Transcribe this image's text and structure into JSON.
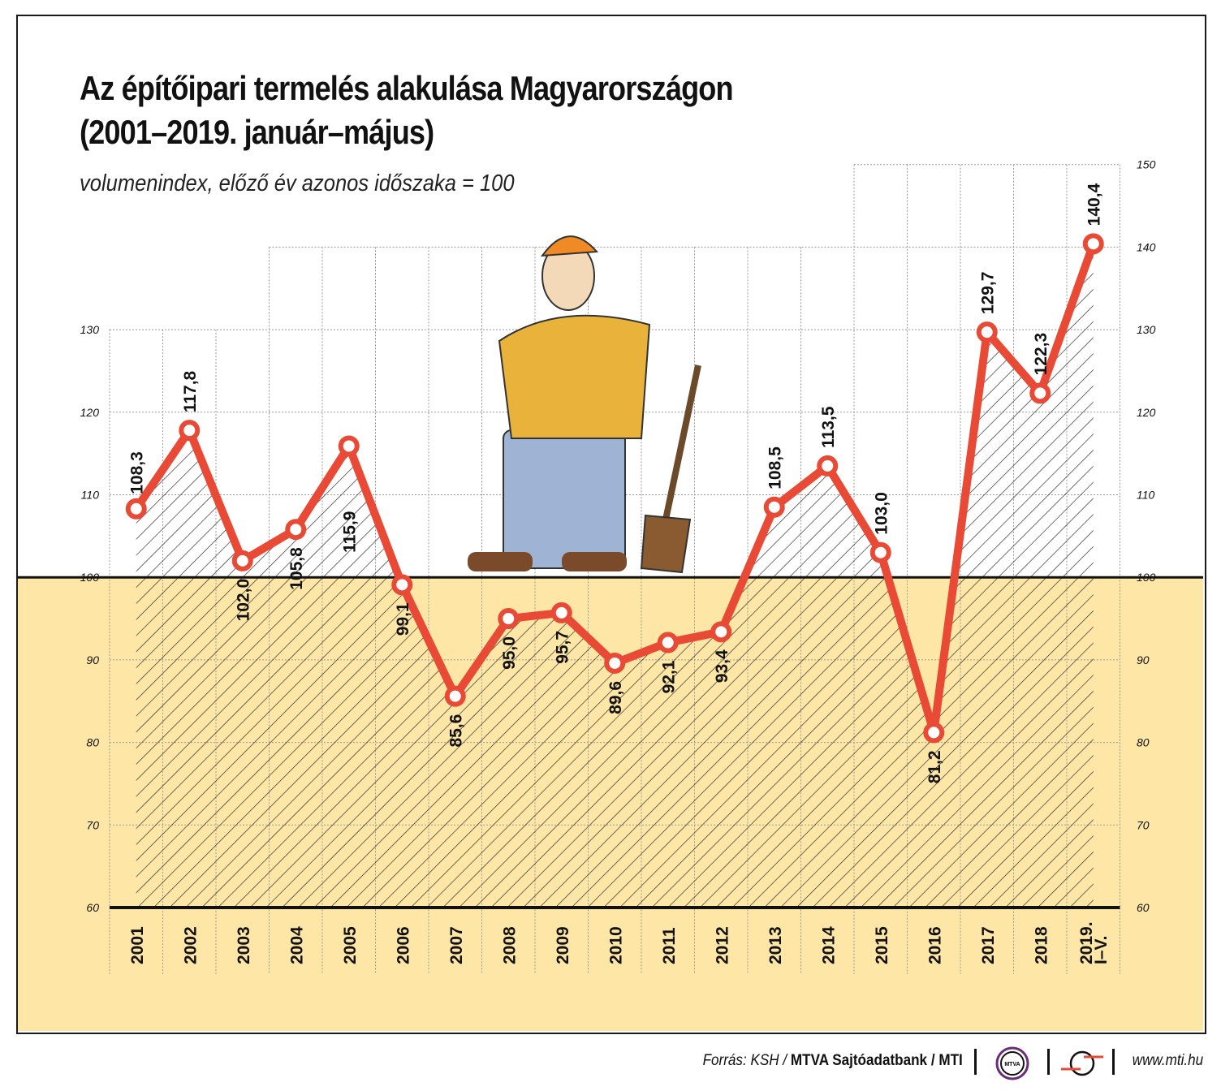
{
  "header": {
    "title_line1": "Az építőipari termelés alakulása Magyarországon",
    "title_line2": "(2001–2019. január–május)",
    "subtitle": "volumenindex, előző év azonos időszaka = 100"
  },
  "footer": {
    "source_prefix": "Forrás: KSH / ",
    "source_bold": "MTVA Sajtóadatbank",
    "source_suffix": " / MTI",
    "logo1_text": "MTVA",
    "url": "www.mti.hu"
  },
  "colors": {
    "line": "#e84a35",
    "below_100_fill": "#fde6a6",
    "grid": "#999999"
  },
  "chart_data": {
    "type": "line",
    "title": "Az építőipari termelés alakulása Magyarországon (2001–2019. január–május)",
    "subtitle": "volumenindex, előző év azonos időszaka = 100",
    "xlabel": "",
    "ylabel": "",
    "categories": [
      "2001",
      "2002",
      "2003",
      "2004",
      "2005",
      "2006",
      "2007",
      "2008",
      "2009",
      "2010",
      "2011",
      "2012",
      "2013",
      "2014",
      "2015",
      "2016",
      "2017",
      "2018",
      "2019. I–V."
    ],
    "values": [
      108.3,
      117.8,
      102.0,
      105.8,
      115.9,
      99.1,
      85.6,
      95.0,
      95.7,
      89.6,
      92.1,
      93.4,
      108.5,
      113.5,
      103.0,
      81.2,
      129.7,
      122.3,
      140.4
    ],
    "labels": [
      "108,3",
      "117,8",
      "102,0",
      "105,8",
      "115,9",
      "99,1",
      "85,6",
      "95,0",
      "95,7",
      "89,6",
      "92,1",
      "93,4",
      "108,5",
      "113,5",
      "103,0",
      "81,2",
      "129,7",
      "122,3",
      "140,4"
    ],
    "ylim": [
      60,
      150
    ],
    "yticks_left": [
      "60",
      "70",
      "80",
      "90",
      "100",
      "110",
      "120",
      "130"
    ],
    "yticks_right": [
      "60",
      "70",
      "80",
      "90",
      "100",
      "110",
      "120",
      "130",
      "140",
      "150"
    ],
    "reference_line": 100,
    "grid": true,
    "legend": null
  }
}
